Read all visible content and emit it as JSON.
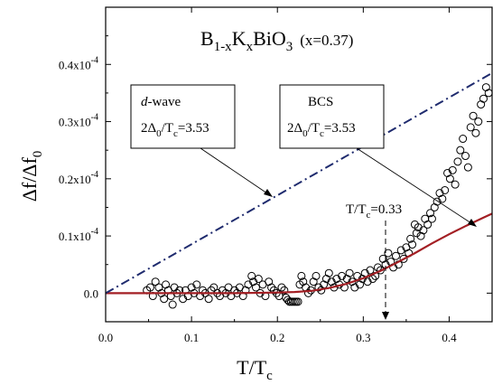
{
  "chart_data": {
    "type": "scatter",
    "title": {
      "main": "B",
      "sub1": "1-x",
      "mid1": "K",
      "sub2": "x",
      "mid2": "BiO",
      "sub3": "3",
      "suffix": "(x=0.37)"
    },
    "xlabel": {
      "main": "T/T",
      "sub": "c"
    },
    "ylabel": {
      "main": "Δf/Δf",
      "sub": "0"
    },
    "xlim": [
      0.0,
      0.45
    ],
    "ylim": [
      -5e-06,
      5e-05
    ],
    "xticks": [
      {
        "value": 0.0,
        "label": "0.0"
      },
      {
        "value": 0.1,
        "label": "0.1"
      },
      {
        "value": 0.2,
        "label": "0.2"
      },
      {
        "value": 0.3,
        "label": "0.3"
      },
      {
        "value": 0.4,
        "label": "0.4"
      }
    ],
    "yticks": [
      {
        "value": 0.0,
        "mant": "0.0",
        "exp": ""
      },
      {
        "value": 1e-05,
        "mant": "0.1x10",
        "exp": "-4"
      },
      {
        "value": 2e-05,
        "mant": "0.2x10",
        "exp": "-4"
      },
      {
        "value": 3e-05,
        "mant": "0.3x10",
        "exp": "-4"
      },
      {
        "value": 4e-05,
        "mant": "0.4x10",
        "exp": "-4"
      }
    ],
    "grid": false,
    "series": [
      {
        "kind": "scatter",
        "marker": "open-circle",
        "color": "#000000",
        "points": [
          [
            0.048,
            5e-07
          ],
          [
            0.052,
            1e-06
          ],
          [
            0.055,
            -5e-07
          ],
          [
            0.058,
            2e-06
          ],
          [
            0.062,
            1e-06
          ],
          [
            0.065,
            0.0
          ],
          [
            0.068,
            -1e-06
          ],
          [
            0.07,
            1.5e-06
          ],
          [
            0.073,
            5e-07
          ],
          [
            0.076,
            -5e-07
          ],
          [
            0.078,
            -2e-06
          ],
          [
            0.08,
            1e-06
          ],
          [
            0.083,
            0.0
          ],
          [
            0.086,
            5e-07
          ],
          [
            0.09,
            -1e-06
          ],
          [
            0.093,
            5e-07
          ],
          [
            0.096,
            -5e-07
          ],
          [
            0.1,
            1e-06
          ],
          [
            0.103,
            0.0
          ],
          [
            0.106,
            1.5e-06
          ],
          [
            0.11,
            -5e-07
          ],
          [
            0.113,
            5e-07
          ],
          [
            0.116,
            0.0
          ],
          [
            0.12,
            -1e-06
          ],
          [
            0.123,
            5e-07
          ],
          [
            0.126,
            1e-06
          ],
          [
            0.13,
            0.0
          ],
          [
            0.133,
            -5e-07
          ],
          [
            0.136,
            5e-07
          ],
          [
            0.14,
            0.0
          ],
          [
            0.143,
            1e-06
          ],
          [
            0.146,
            -5e-07
          ],
          [
            0.15,
            5e-07
          ],
          [
            0.153,
            0.0
          ],
          [
            0.156,
            1e-06
          ],
          [
            0.16,
            -5e-07
          ],
          [
            0.163,
            5e-07
          ],
          [
            0.166,
            1.5e-06
          ],
          [
            0.17,
            3e-06
          ],
          [
            0.172,
            2e-06
          ],
          [
            0.175,
            1e-06
          ],
          [
            0.178,
            2.5e-06
          ],
          [
            0.18,
            0.0
          ],
          [
            0.183,
            1.5e-06
          ],
          [
            0.186,
            -5e-07
          ],
          [
            0.19,
            2e-06
          ],
          [
            0.193,
            1e-06
          ],
          [
            0.196,
            5e-07
          ],
          [
            0.199,
            0.0
          ],
          [
            0.202,
            -5e-07
          ],
          [
            0.205,
            1e-06
          ],
          [
            0.208,
            5e-07
          ],
          [
            0.21,
            -8e-07
          ],
          [
            0.212,
            -1.2e-06
          ],
          [
            0.214,
            -1.5e-06
          ],
          [
            0.216,
            -1.5e-06
          ],
          [
            0.218,
            -1.5e-06
          ],
          [
            0.22,
            -1.5e-06
          ],
          [
            0.222,
            -1.5e-06
          ],
          [
            0.224,
            -1.5e-06
          ],
          [
            0.226,
            1.5e-06
          ],
          [
            0.228,
            3e-06
          ],
          [
            0.23,
            2e-06
          ],
          [
            0.233,
            1e-06
          ],
          [
            0.236,
            0.0
          ],
          [
            0.239,
            5e-07
          ],
          [
            0.242,
            2e-06
          ],
          [
            0.245,
            3e-06
          ],
          [
            0.248,
            1e-06
          ],
          [
            0.251,
            5e-07
          ],
          [
            0.254,
            1.5e-06
          ],
          [
            0.257,
            2.5e-06
          ],
          [
            0.26,
            3.5e-06
          ],
          [
            0.263,
            2e-06
          ],
          [
            0.266,
            1e-06
          ],
          [
            0.269,
            2.5e-06
          ],
          [
            0.272,
            1.5e-06
          ],
          [
            0.275,
            3e-06
          ],
          [
            0.278,
            1e-06
          ],
          [
            0.281,
            2.5e-06
          ],
          [
            0.284,
            3.5e-06
          ],
          [
            0.287,
            2e-06
          ],
          [
            0.29,
            1e-06
          ],
          [
            0.293,
            3e-06
          ],
          [
            0.296,
            1.5e-06
          ],
          [
            0.299,
            2.5e-06
          ],
          [
            0.302,
            3.5e-06
          ],
          [
            0.305,
            2e-06
          ],
          [
            0.308,
            4e-06
          ],
          [
            0.311,
            2.5e-06
          ],
          [
            0.314,
            3e-06
          ],
          [
            0.317,
            4.5e-06
          ],
          [
            0.32,
            4e-06
          ],
          [
            0.323,
            6e-06
          ],
          [
            0.326,
            5e-06
          ],
          [
            0.329,
            7e-06
          ],
          [
            0.332,
            5.5e-06
          ],
          [
            0.335,
            4.5e-06
          ],
          [
            0.338,
            6.5e-06
          ],
          [
            0.341,
            5e-06
          ],
          [
            0.344,
            7.5e-06
          ],
          [
            0.347,
            6e-06
          ],
          [
            0.35,
            8e-06
          ],
          [
            0.353,
            7e-06
          ],
          [
            0.355,
            9.5e-06
          ],
          [
            0.357,
            8.5e-06
          ],
          [
            0.36,
            1.2e-05
          ],
          [
            0.362,
            1.05e-05
          ],
          [
            0.364,
            1.15e-05
          ],
          [
            0.367,
            1e-05
          ],
          [
            0.37,
            1.1e-05
          ],
          [
            0.372,
            1.3e-05
          ],
          [
            0.375,
            1.2e-05
          ],
          [
            0.378,
            1.4e-05
          ],
          [
            0.38,
            1.3e-05
          ],
          [
            0.383,
            1.5e-05
          ],
          [
            0.386,
            1.6e-05
          ],
          [
            0.389,
            1.75e-05
          ],
          [
            0.392,
            1.65e-05
          ],
          [
            0.395,
            1.8e-05
          ],
          [
            0.398,
            2.1e-05
          ],
          [
            0.401,
            2e-05
          ],
          [
            0.404,
            2.15e-05
          ],
          [
            0.407,
            1.9e-05
          ],
          [
            0.41,
            2.3e-05
          ],
          [
            0.413,
            2.5e-05
          ],
          [
            0.416,
            2.7e-05
          ],
          [
            0.419,
            2.4e-05
          ],
          [
            0.422,
            2.2e-05
          ],
          [
            0.425,
            2.9e-05
          ],
          [
            0.428,
            3.1e-05
          ],
          [
            0.431,
            2.8e-05
          ],
          [
            0.434,
            3e-05
          ],
          [
            0.437,
            3.3e-05
          ],
          [
            0.44,
            3.4e-05
          ],
          [
            0.443,
            3.6e-05
          ],
          [
            0.446,
            3.5e-05
          ]
        ]
      },
      {
        "kind": "line",
        "style": "solid",
        "color": "#a31f24",
        "points": [
          [
            0.0,
            0.0
          ],
          [
            0.05,
            0.0
          ],
          [
            0.1,
            0.0
          ],
          [
            0.15,
            0.0
          ],
          [
            0.2,
            1e-07
          ],
          [
            0.22,
            2e-07
          ],
          [
            0.24,
            4e-07
          ],
          [
            0.26,
            9e-07
          ],
          [
            0.28,
            1.6e-06
          ],
          [
            0.3,
            2.6e-06
          ],
          [
            0.32,
            3.9e-06
          ],
          [
            0.34,
            5.4e-06
          ],
          [
            0.36,
            7e-06
          ],
          [
            0.38,
            8.7e-06
          ],
          [
            0.4,
            1.03e-05
          ],
          [
            0.42,
            1.18e-05
          ],
          [
            0.44,
            1.32e-05
          ],
          [
            0.45,
            1.39e-05
          ]
        ]
      },
      {
        "kind": "line",
        "style": "dash-dot",
        "color": "#1f2b6e",
        "points": [
          [
            0.0,
            0.0
          ],
          [
            0.45,
            3.85e-05
          ]
        ]
      }
    ],
    "annotations": {
      "dwave": {
        "word": "d",
        "suffix": "-wave",
        "formula": "2Δ",
        "sub0": "0",
        "mid": "/T",
        "subc": "c",
        "value": "=3.53"
      },
      "bcs": {
        "word": "BCS",
        "formula": "2Δ",
        "sub0": "0",
        "mid": "/T",
        "subc": "c",
        "value": "=3.53"
      },
      "marker": {
        "main": "T/T",
        "sub": "c",
        "value": "=0.33"
      }
    }
  }
}
